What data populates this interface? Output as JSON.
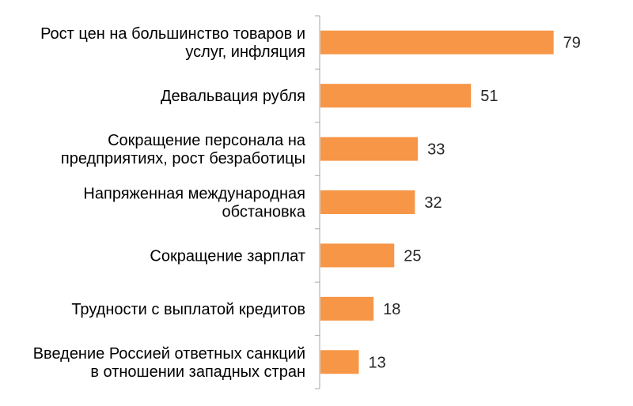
{
  "chart_data": {
    "type": "bar",
    "orientation": "horizontal",
    "categories": [
      [
        "Рост цен на большинство товаров и",
        "услуг, инфляция"
      ],
      [
        "Девальвация рубля"
      ],
      [
        "Сокращение персонала на",
        "предприятиях, рост безработицы"
      ],
      [
        "Напряженная международная",
        "обстановка"
      ],
      [
        "Сокращение зарплат"
      ],
      [
        "Трудности с выплатой кредитов"
      ],
      [
        "Введение Россией ответных  санкций",
        "в отношении западных стран"
      ]
    ],
    "values": [
      79,
      51,
      33,
      32,
      25,
      18,
      13
    ],
    "xlim": [
      0,
      100
    ],
    "bar_color": "#F79646",
    "axis_color": "#A6A6A6",
    "data_labels": true,
    "grid": false,
    "legend": "none"
  }
}
